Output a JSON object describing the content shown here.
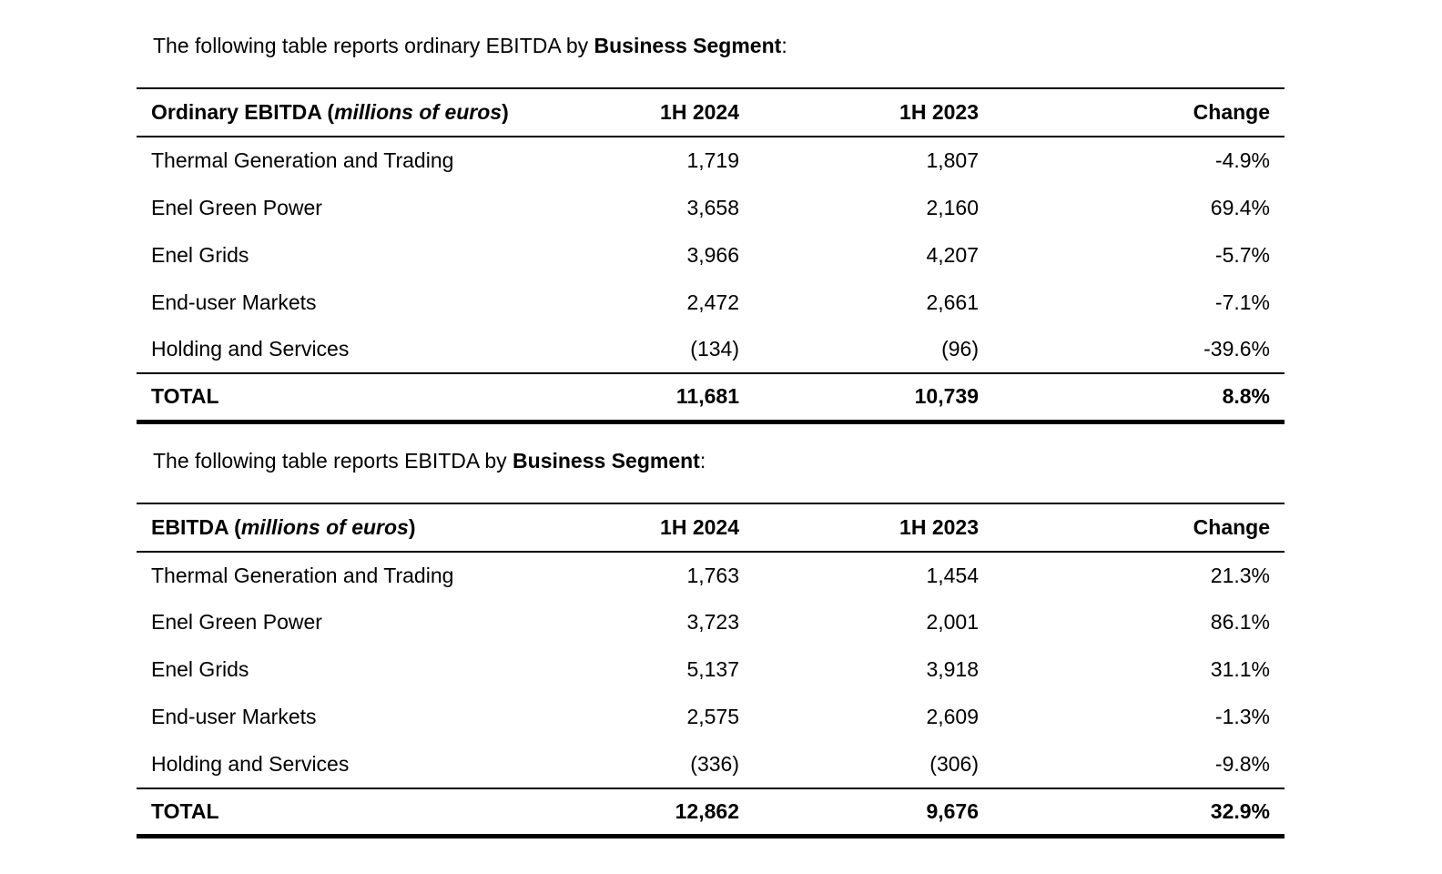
{
  "page": {
    "background": "#ffffff",
    "text_color": "#000000"
  },
  "tables": [
    {
      "intro_prefix": "The following table reports ordinary EBITDA by ",
      "intro_bold": "Business Segment",
      "intro_suffix": ":",
      "header": {
        "title_bold": "Ordinary EBITDA (",
        "title_italic": "millions of euros",
        "title_close": ")",
        "col_2024": "1H 2024",
        "col_2023": "1H 2023",
        "col_change": "Change"
      },
      "rows": [
        {
          "label": "Thermal Generation and Trading",
          "v2024": "1,719",
          "v2023": "1,807",
          "change": "-4.9%"
        },
        {
          "label": "Enel Green Power",
          "v2024": "3,658",
          "v2023": "2,160",
          "change": "69.4%"
        },
        {
          "label": "Enel Grids",
          "v2024": "3,966",
          "v2023": "4,207",
          "change": "-5.7%"
        },
        {
          "label": "End-user Markets",
          "v2024": "2,472",
          "v2023": "2,661",
          "change": "-7.1%"
        },
        {
          "label": "Holding and Services",
          "v2024": "(134)",
          "v2023": "(96)",
          "change": "-39.6%"
        }
      ],
      "total": {
        "label": "TOTAL",
        "v2024": "11,681",
        "v2023": "10,739",
        "change": "8.8%"
      }
    },
    {
      "intro_prefix": "The following table reports EBITDA by ",
      "intro_bold": "Business Segment",
      "intro_suffix": ":",
      "header": {
        "title_bold": "EBITDA (",
        "title_italic": "millions of euros",
        "title_close": ")",
        "col_2024": "1H 2024",
        "col_2023": "1H 2023",
        "col_change": "Change"
      },
      "rows": [
        {
          "label": "Thermal Generation and Trading",
          "v2024": "1,763",
          "v2023": "1,454",
          "change": "21.3%"
        },
        {
          "label": "Enel Green Power",
          "v2024": "3,723",
          "v2023": "2,001",
          "change": "86.1%"
        },
        {
          "label": "Enel Grids",
          "v2024": "5,137",
          "v2023": "3,918",
          "change": "31.1%"
        },
        {
          "label": "End-user Markets",
          "v2024": "2,575",
          "v2023": "2,609",
          "change": "-1.3%"
        },
        {
          "label": "Holding and Services",
          "v2024": "(336)",
          "v2023": "(306)",
          "change": "-9.8%"
        }
      ],
      "total": {
        "label": "TOTAL",
        "v2024": "12,862",
        "v2023": "9,676",
        "change": "32.9%"
      }
    }
  ]
}
